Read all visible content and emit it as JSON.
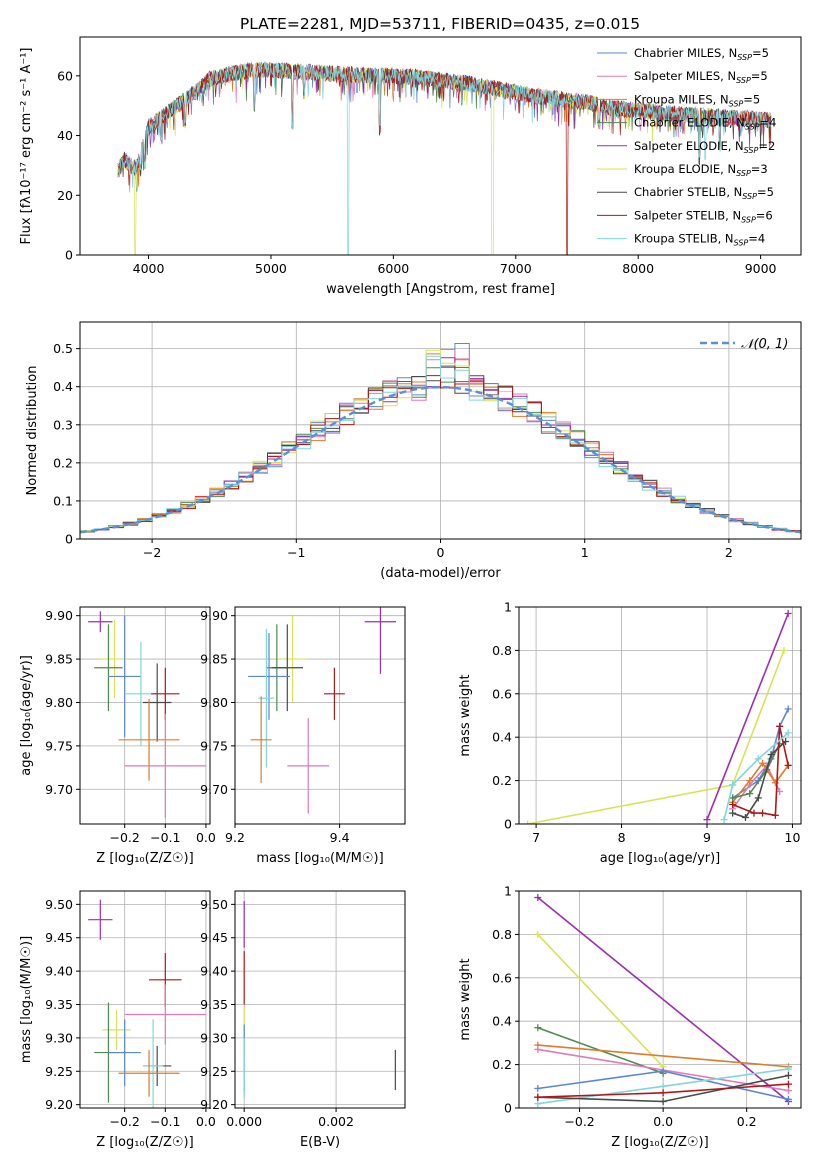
{
  "figure_title": "PLATE=2281, MJD=53711, FIBERID=0435, z=0.015",
  "colors": {
    "Chabrier MILES": "#5b86d8",
    "Salpeter MILES": "#e07ab8",
    "Kroupa MILES": "#e07b28",
    "Chabrier ELODIE": "#4f8a4f",
    "Salpeter ELODIE": "#9b2fb0",
    "Kroupa ELODIE": "#d9e256",
    "Chabrier STELIB": "#4a4a4a",
    "Salpeter STELIB": "#b01818",
    "Kroupa STELIB": "#7fd6dc"
  },
  "chart_data": [
    {
      "id": "spectrum",
      "type": "line",
      "title": "PLATE=2281, MJD=53711, FIBERID=0435, z=0.015",
      "xlabel": "wavelength [Angstrom, rest frame]",
      "ylabel": "Flux [fλ10⁻¹⁷ erg cm⁻² s⁻¹ A⁻¹]",
      "xlim": [
        3440,
        9330
      ],
      "ylim": [
        0,
        73
      ],
      "xticks": [
        4000,
        5000,
        6000,
        7000,
        8000,
        9000
      ],
      "yticks": [
        0,
        20,
        40,
        60
      ],
      "grid": false,
      "legend_position": "top-right",
      "legend": [
        {
          "base": "Chabrier MILES, N",
          "sub": "SSP",
          "tail": "=5",
          "series": "Chabrier MILES"
        },
        {
          "base": "Salpeter MILES, N",
          "sub": "SSP",
          "tail": "=5",
          "series": "Salpeter MILES"
        },
        {
          "base": "Kroupa MILES, N",
          "sub": "SSP",
          "tail": "=5",
          "series": "Kroupa MILES"
        },
        {
          "base": "Chabrier ELODIE, N",
          "sub": "SSP",
          "tail": "=4",
          "series": "Chabrier ELODIE"
        },
        {
          "base": "Salpeter ELODIE, N",
          "sub": "SSP",
          "tail": "=2",
          "series": "Salpeter ELODIE"
        },
        {
          "base": "Kroupa ELODIE, N",
          "sub": "SSP",
          "tail": "=3",
          "series": "Kroupa ELODIE"
        },
        {
          "base": "Chabrier STELIB, N",
          "sub": "SSP",
          "tail": "=5",
          "series": "Chabrier STELIB"
        },
        {
          "base": "Salpeter STELIB, N",
          "sub": "SSP",
          "tail": "=6",
          "series": "Salpeter STELIB"
        },
        {
          "base": "Kroupa STELIB, N",
          "sub": "SSP",
          "tail": "=4",
          "series": "Kroupa STELIB"
        }
      ],
      "continuum": {
        "x": [
          3750,
          3800,
          3850,
          3900,
          3950,
          4000,
          4100,
          4200,
          4300,
          4400,
          4500,
          4600,
          4700,
          4800,
          4900,
          5000,
          5200,
          5400,
          5600,
          5800,
          6000,
          6200,
          6400,
          6600,
          6800,
          7000,
          7200,
          7400,
          7600,
          7800,
          8000,
          8200,
          8400,
          8600,
          8800,
          9000,
          9080
        ],
        "y": [
          28,
          32,
          30,
          29,
          36,
          43,
          46,
          49,
          52,
          55,
          59,
          60,
          61,
          61.5,
          62,
          62,
          61.5,
          61,
          60.5,
          60,
          60,
          59.5,
          58.5,
          57.5,
          56,
          54.5,
          53,
          52,
          51,
          49,
          48.5,
          47.5,
          47,
          46.5,
          46,
          45.5,
          45
        ]
      },
      "abs_features": [
        {
          "x": 3890,
          "series": "Kroupa ELODIE",
          "depth": 0
        },
        {
          "x": 3934,
          "series": "all",
          "depth": 28
        },
        {
          "x": 3968,
          "series": "all",
          "depth": 30
        },
        {
          "x": 4102,
          "series": "all",
          "depth": 40
        },
        {
          "x": 4300,
          "series": "all",
          "depth": 44
        },
        {
          "x": 4861,
          "series": "all",
          "depth": 50
        },
        {
          "x": 5175,
          "series": "all",
          "depth": 44
        },
        {
          "x": 5270,
          "series": "all",
          "depth": 54
        },
        {
          "x": 5630,
          "series": "Kroupa STELIB",
          "depth": 0
        },
        {
          "x": 5890,
          "series": "all",
          "depth": 42
        },
        {
          "x": 6563,
          "series": "all",
          "depth": 52
        },
        {
          "x": 6810,
          "series": "Kroupa ELODIE",
          "depth": 0
        },
        {
          "x": 7420,
          "series": "Salpeter STELIB",
          "depth": 0
        },
        {
          "x": 7680,
          "series": "all",
          "depth": 44
        },
        {
          "x": 8500,
          "series": "all",
          "depth": 32
        },
        {
          "x": 8545,
          "series": "Kroupa STELIB",
          "depth": 32
        },
        {
          "x": 8665,
          "series": "all",
          "depth": 36
        }
      ]
    },
    {
      "id": "residuals",
      "type": "histogram",
      "xlabel": "(data-model)/error",
      "ylabel": "Normed distribution",
      "xlim": [
        -2.5,
        2.5
      ],
      "ylim": [
        0,
        0.57
      ],
      "xticks": [
        -2,
        -1,
        0,
        1,
        2
      ],
      "xtick_labels": [
        "−2",
        "−1",
        "0",
        "1",
        "2"
      ],
      "yticks": [
        0.0,
        0.1,
        0.2,
        0.3,
        0.4,
        0.5
      ],
      "grid": true,
      "legend_position": "top-right",
      "legend": [
        {
          "label": "𝒩(0, 1)",
          "style": "dashed"
        }
      ],
      "normal_curve": {
        "mu": 0,
        "sigma": 1,
        "color": "#5b8fd9"
      },
      "bin_width": 0.1
    },
    {
      "id": "age_vs_Z",
      "type": "errorbar",
      "xlabel": "Z [log₁₀(Z/Z☉)]",
      "ylabel": "age  [log₁₀(age/yr)]",
      "xlim": [
        -0.31,
        0.01
      ],
      "ylim": [
        9.66,
        9.91
      ],
      "xticks": [
        -0.2,
        -0.1,
        0.0
      ],
      "xtick_labels": [
        "−0.2",
        "−0.1",
        "0.0"
      ],
      "yticks": [
        9.7,
        9.75,
        9.8,
        9.85,
        9.9
      ],
      "ytick_labels": [
        "9.70",
        "9.75",
        "9.80",
        "9.85",
        "9.90"
      ],
      "grid": true,
      "points": [
        {
          "series": "Salpeter ELODIE",
          "x": -0.26,
          "xerr": 0.03,
          "y": 9.893,
          "yerr": 0.012
        },
        {
          "series": "Kroupa ELODIE",
          "x": -0.225,
          "xerr": 0.035,
          "y": 9.85,
          "yerr": 0.045
        },
        {
          "series": "Chabrier ELODIE",
          "x": -0.24,
          "xerr": 0.035,
          "y": 9.84,
          "yerr": 0.05
        },
        {
          "series": "Chabrier MILES",
          "x": -0.2,
          "xerr": 0.04,
          "y": 9.83,
          "yerr": 0.07
        },
        {
          "series": "Kroupa STELIB",
          "x": -0.16,
          "xerr": 0.04,
          "y": 9.81,
          "yerr": 0.06
        },
        {
          "series": "Salpeter STELIB",
          "x": -0.1,
          "xerr": 0.035,
          "y": 9.81,
          "yerr": 0.03
        },
        {
          "series": "Chabrier STELIB",
          "x": -0.12,
          "xerr": 0.035,
          "y": 9.8,
          "yerr": 0.045
        },
        {
          "series": "Kroupa MILES",
          "x": -0.14,
          "xerr": 0.075,
          "y": 9.757,
          "yerr": 0.047
        },
        {
          "series": "Salpeter MILES",
          "x": -0.1,
          "xerr": 0.1,
          "y": 9.727,
          "yerr": 0.06
        }
      ]
    },
    {
      "id": "age_vs_mass",
      "type": "errorbar",
      "xlabel": "mass [log₁₀(M/M☉)]",
      "ylabel": "",
      "xlim": [
        9.2,
        9.525
      ],
      "ylim": [
        9.66,
        9.91
      ],
      "xticks": [
        9.2,
        9.4
      ],
      "yticks": [
        9.7,
        9.75,
        9.8,
        9.85,
        9.9
      ],
      "ytick_labels": [
        "9.70",
        "9.75",
        "9.80",
        "9.85",
        "9.90"
      ],
      "grid": true,
      "points": [
        {
          "series": "Salpeter ELODIE",
          "x": 9.478,
          "xerr": 0.03,
          "y": 9.893,
          "yerr": 0.06
        },
        {
          "series": "Kroupa ELODIE",
          "x": 9.31,
          "xerr": 0.03,
          "y": 9.85,
          "yerr": 0.05
        },
        {
          "series": "Chabrier ELODIE",
          "x": 9.28,
          "xerr": 0.02,
          "y": 9.84,
          "yerr": 0.05
        },
        {
          "series": "Chabrier STELIB",
          "x": 9.3,
          "xerr": 0.03,
          "y": 9.84,
          "yerr": 0.05
        },
        {
          "series": "Chabrier MILES",
          "x": 9.265,
          "xerr": 0.04,
          "y": 9.83,
          "yerr": 0.05
        },
        {
          "series": "Kroupa STELIB",
          "x": 9.26,
          "xerr": 0.015,
          "y": 9.805,
          "yerr": 0.08
        },
        {
          "series": "Salpeter STELIB",
          "x": 9.39,
          "xerr": 0.02,
          "y": 9.81,
          "yerr": 0.03
        },
        {
          "series": "Kroupa MILES",
          "x": 9.25,
          "xerr": 0.02,
          "y": 9.757,
          "yerr": 0.05
        },
        {
          "series": "Salpeter MILES",
          "x": 9.34,
          "xerr": 0.04,
          "y": 9.727,
          "yerr": 0.055
        }
      ]
    },
    {
      "id": "weight_vs_age",
      "type": "line",
      "xlabel": "age  [log₁₀(age/yr)]",
      "ylabel": "mass weight",
      "xlim": [
        6.8,
        10.1
      ],
      "ylim": [
        0,
        1.0
      ],
      "xticks": [
        7,
        8,
        9,
        10
      ],
      "yticks": [
        0.0,
        0.2,
        0.4,
        0.6,
        0.8,
        1.0
      ],
      "grid": true,
      "series": [
        {
          "name": "Kroupa ELODIE",
          "x": [
            6.9,
            9.3,
            9.9
          ],
          "y": [
            0.0,
            0.18,
            0.8
          ]
        },
        {
          "name": "Salpeter ELODIE",
          "x": [
            9.0,
            9.95
          ],
          "y": [
            0.02,
            0.97
          ]
        },
        {
          "name": "Chabrier MILES",
          "x": [
            9.3,
            9.6,
            9.75,
            9.85,
            9.95
          ],
          "y": [
            0.12,
            0.2,
            0.3,
            0.45,
            0.53
          ]
        },
        {
          "name": "Salpeter MILES",
          "x": [
            9.3,
            9.5,
            9.7,
            9.85
          ],
          "y": [
            0.07,
            0.18,
            0.27,
            0.15
          ]
        },
        {
          "name": "Kroupa MILES",
          "x": [
            9.3,
            9.5,
            9.65,
            9.8,
            9.95
          ],
          "y": [
            0.1,
            0.2,
            0.28,
            0.19,
            0.27
          ]
        },
        {
          "name": "Chabrier ELODIE",
          "x": [
            9.3,
            9.5,
            9.7,
            9.85
          ],
          "y": [
            0.12,
            0.14,
            0.25,
            0.37
          ]
        },
        {
          "name": "Chabrier STELIB",
          "x": [
            9.3,
            9.45,
            9.6,
            9.75,
            9.92
          ],
          "y": [
            0.05,
            0.03,
            0.12,
            0.32,
            0.38
          ]
        },
        {
          "name": "Salpeter STELIB",
          "x": [
            9.3,
            9.55,
            9.65,
            9.8,
            9.85,
            9.95
          ],
          "y": [
            0.09,
            0.05,
            0.05,
            0.04,
            0.45,
            0.27
          ]
        },
        {
          "name": "Kroupa STELIB",
          "x": [
            9.2,
            9.3,
            9.6,
            9.95
          ],
          "y": [
            0.02,
            0.18,
            0.3,
            0.42
          ]
        }
      ]
    },
    {
      "id": "mass_vs_Z",
      "type": "errorbar",
      "xlabel": "Z [log₁₀(Z/Z☉)]",
      "ylabel": "mass [log₁₀(M/M☉)]",
      "xlim": [
        -0.31,
        0.01
      ],
      "ylim": [
        9.195,
        9.52
      ],
      "xticks": [
        -0.2,
        -0.1,
        0.0
      ],
      "xtick_labels": [
        "−0.2",
        "−0.1",
        "0.0"
      ],
      "yticks": [
        9.2,
        9.25,
        9.3,
        9.35,
        9.4,
        9.45,
        9.5
      ],
      "ytick_labels": [
        "9.20",
        "9.25",
        "9.30",
        "9.35",
        "9.40",
        "9.45",
        "9.50"
      ],
      "grid": true,
      "points": [
        {
          "series": "Salpeter ELODIE",
          "x": -0.26,
          "xerr": 0.03,
          "y": 9.477,
          "yerr": 0.03
        },
        {
          "series": "Salpeter STELIB",
          "x": -0.1,
          "xerr": 0.04,
          "y": 9.387,
          "yerr": 0.04
        },
        {
          "series": "Salpeter MILES",
          "x": -0.1,
          "xerr": 0.1,
          "y": 9.335,
          "yerr": 0.045
        },
        {
          "series": "Kroupa ELODIE",
          "x": -0.22,
          "xerr": 0.035,
          "y": 9.312,
          "yerr": 0.03
        },
        {
          "series": "Chabrier ELODIE",
          "x": -0.24,
          "xerr": 0.035,
          "y": 9.278,
          "yerr": 0.075
        },
        {
          "series": "Chabrier MILES",
          "x": -0.2,
          "xerr": 0.04,
          "y": 9.278,
          "yerr": 0.05
        },
        {
          "series": "Chabrier STELIB",
          "x": -0.12,
          "xerr": 0.035,
          "y": 9.258,
          "yerr": 0.03
        },
        {
          "series": "Kroupa STELIB",
          "x": -0.13,
          "xerr": 0.025,
          "y": 9.258,
          "yerr": 0.07
        },
        {
          "series": "Kroupa MILES",
          "x": -0.14,
          "xerr": 0.075,
          "y": 9.247,
          "yerr": 0.035
        }
      ]
    },
    {
      "id": "mass_vs_EBV",
      "type": "errorbar",
      "xlabel": "E(B-V)",
      "ylabel": "",
      "xlim": [
        -0.0002,
        0.0035
      ],
      "ylim": [
        9.195,
        9.52
      ],
      "xticks": [
        0.0,
        0.002
      ],
      "xtick_labels": [
        "0.000",
        "0.002"
      ],
      "yticks": [
        9.2,
        9.25,
        9.3,
        9.35,
        9.4,
        9.45,
        9.5
      ],
      "ytick_labels": [
        "9.20",
        "9.25",
        "9.30",
        "9.35",
        "9.40",
        "9.45",
        "9.50"
      ],
      "grid": true,
      "points": [
        {
          "series": "Salpeter ELODIE",
          "x": 0.0,
          "xerr": 0,
          "y": 9.47,
          "yerr": 0.035
        },
        {
          "series": "Salpeter STELIB",
          "x": 0.0,
          "xerr": 0,
          "y": 9.39,
          "yerr": 0.04
        },
        {
          "series": "Kroupa ELODIE",
          "x": 0.0,
          "xerr": 0,
          "y": 9.31,
          "yerr": 0.035
        },
        {
          "series": "Chabrier MILES",
          "x": 0.0,
          "xerr": 0,
          "y": 9.27,
          "yerr": 0.05
        },
        {
          "series": "Kroupa STELIB",
          "x": 0.0,
          "xerr": 0,
          "y": 9.255,
          "yerr": 0.045
        },
        {
          "series": "Chabrier STELIB",
          "x": 0.00329,
          "xerr": 0,
          "y": 9.252,
          "yerr": 0.03
        }
      ]
    },
    {
      "id": "weight_vs_Z",
      "type": "line",
      "xlabel": "Z [log₁₀(Z/Z☉)]",
      "ylabel": "mass weight",
      "xlim": [
        -0.345,
        0.33
      ],
      "ylim": [
        0,
        1.0
      ],
      "xticks": [
        -0.2,
        0.0,
        0.2
      ],
      "xtick_labels": [
        "−0.2",
        "0.0",
        "0.2"
      ],
      "yticks": [
        0.0,
        0.2,
        0.4,
        0.6,
        0.8,
        1.0
      ],
      "grid": true,
      "series": [
        {
          "name": "Salpeter ELODIE",
          "x": [
            -0.3,
            0.3
          ],
          "y": [
            0.97,
            0.03
          ]
        },
        {
          "name": "Kroupa ELODIE",
          "x": [
            -0.3,
            0.0
          ],
          "y": [
            0.8,
            0.19
          ]
        },
        {
          "name": "Chabrier ELODIE",
          "x": [
            -0.3,
            0.0
          ],
          "y": [
            0.37,
            0.16
          ]
        },
        {
          "name": "Kroupa MILES",
          "x": [
            -0.3,
            0.3
          ],
          "y": [
            0.29,
            0.19
          ]
        },
        {
          "name": "Salpeter MILES",
          "x": [
            -0.3,
            0.3
          ],
          "y": [
            0.27,
            0.08
          ]
        },
        {
          "name": "Chabrier MILES",
          "x": [
            -0.3,
            0.0,
            0.3
          ],
          "y": [
            0.09,
            0.17,
            0.04
          ]
        },
        {
          "name": "Kroupa STELIB",
          "x": [
            -0.3,
            0.0,
            0.3
          ],
          "y": [
            0.02,
            0.1,
            0.18
          ]
        },
        {
          "name": "Chabrier STELIB",
          "x": [
            -0.3,
            0.0,
            0.3
          ],
          "y": [
            0.05,
            0.03,
            0.15
          ]
        },
        {
          "name": "Salpeter STELIB",
          "x": [
            -0.3,
            0.0,
            0.3
          ],
          "y": [
            0.05,
            0.07,
            0.11
          ]
        }
      ]
    }
  ]
}
